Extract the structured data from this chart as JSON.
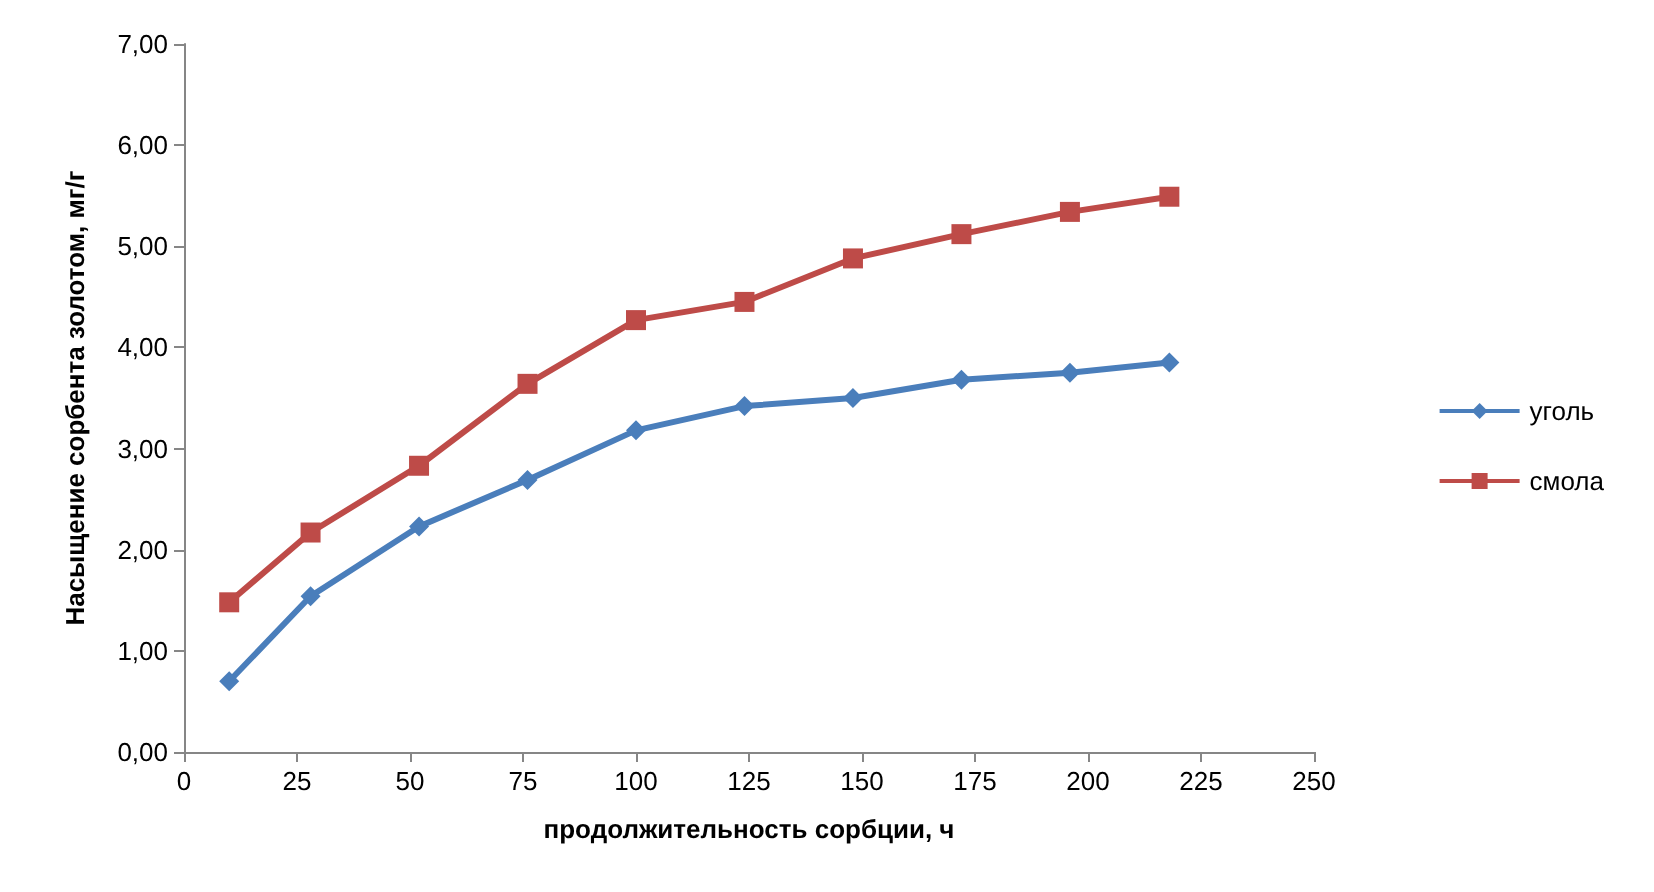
{
  "chart_data": {
    "type": "line",
    "xlabel": "продолжительность сорбции, ч",
    "ylabel": "Насыщение сорбента золотом, мг/г",
    "xlim": [
      0,
      250
    ],
    "xticks": [
      0,
      25,
      50,
      75,
      100,
      125,
      150,
      175,
      200,
      225,
      250
    ],
    "ylim": [
      0,
      7
    ],
    "yticks": [
      {
        "value": 0,
        "label": "0,00"
      },
      {
        "value": 1,
        "label": "1,00"
      },
      {
        "value": 2,
        "label": "2,00"
      },
      {
        "value": 3,
        "label": "3,00"
      },
      {
        "value": 4,
        "label": "4,00"
      },
      {
        "value": 5,
        "label": "5,00"
      },
      {
        "value": 6,
        "label": "6,00"
      },
      {
        "value": 7,
        "label": "7,00"
      }
    ],
    "grid": false,
    "legend": "right",
    "line_style": "solid",
    "series": [
      {
        "name": "уголь",
        "color": "#4a7ebb",
        "marker": "diamond",
        "x": [
          10,
          28,
          52,
          76,
          100,
          124,
          148,
          172,
          196,
          218
        ],
        "values": [
          0.7,
          1.54,
          2.23,
          2.69,
          3.18,
          3.42,
          3.5,
          3.68,
          3.75,
          3.85
        ]
      },
      {
        "name": "смола",
        "color": "#be4b48",
        "marker": "square",
        "x": [
          10,
          28,
          52,
          76,
          100,
          124,
          148,
          172,
          196,
          218
        ],
        "values": [
          1.48,
          2.17,
          2.83,
          3.64,
          4.27,
          4.45,
          4.88,
          5.12,
          5.34,
          5.49
        ]
      }
    ]
  }
}
